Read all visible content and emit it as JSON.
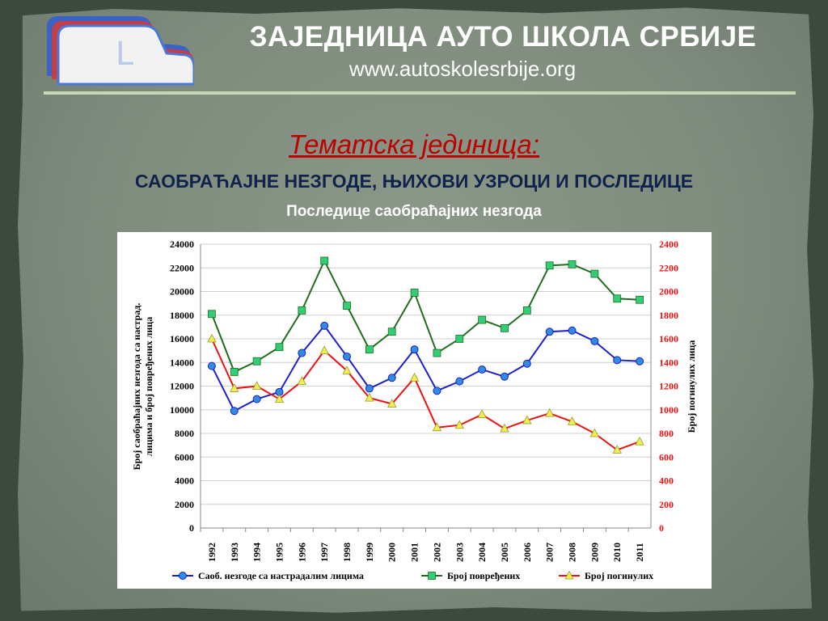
{
  "header": {
    "title": "ЗАЈЕДНИЦА АУТО ШКОЛА СРБИЈЕ",
    "url": "www.autoskolesrbije.org",
    "logo_icon": "car-l-logo-icon"
  },
  "slide": {
    "unit_label": "Тематска јединица:",
    "unit_title": "САОБРАЋАЈНЕ НЕЗГОДЕ, ЊИХОВИ УЗРОЦИ И ПОСЛЕДИЦЕ",
    "subtitle": "Последице саобраћајних незгода"
  },
  "colors": {
    "accidents": "#1f1fcc",
    "injured": "#1e6e1e",
    "killed": "#ee1111",
    "accident_marker": "#2f8de0",
    "injured_marker": "#33cc77",
    "killed_marker": "#f0ee55",
    "title_red": "#c00000",
    "title_navy": "#10234a"
  },
  "chart_data": {
    "type": "line",
    "x": [
      "1992",
      "1993",
      "1994",
      "1995",
      "1996",
      "1997",
      "1998",
      "1999",
      "2000",
      "2001",
      "2002",
      "2003",
      "2004",
      "2005",
      "2006",
      "2007",
      "2008",
      "2009",
      "2010",
      "2011"
    ],
    "ylabel": "Број саобраћајних незгода са настрад. лицима и број повређених лица",
    "y2label": "Број погинулих лица",
    "ylim": [
      0,
      24000
    ],
    "y2lim": [
      0,
      2400
    ],
    "yticks": [
      "0",
      "2000",
      "4000",
      "6000",
      "8000",
      "10000",
      "12000",
      "14000",
      "16000",
      "18000",
      "20000",
      "22000",
      "24000"
    ],
    "y2ticks": [
      "0",
      "200",
      "400",
      "600",
      "800",
      "1000",
      "1200",
      "1400",
      "1600",
      "1800",
      "2000",
      "2200",
      "2400"
    ],
    "grid": true,
    "legend_position": "bottom",
    "series": [
      {
        "name": "Саоб. незгоде са настрадалим лицима",
        "axis": "left",
        "values": [
          13700,
          9900,
          10900,
          11500,
          14800,
          17100,
          14500,
          11800,
          12700,
          15100,
          11600,
          12400,
          13400,
          12800,
          13900,
          16600,
          16700,
          15800,
          14200,
          14100
        ]
      },
      {
        "name": "Број повређених",
        "axis": "left",
        "values": [
          18100,
          13200,
          14100,
          15300,
          18400,
          22600,
          18800,
          15100,
          16600,
          19900,
          14800,
          16000,
          17600,
          16900,
          18400,
          22200,
          22300,
          21500,
          19400,
          19300
        ]
      },
      {
        "name": "Број погинулих",
        "axis": "right",
        "values": [
          1600,
          1180,
          1200,
          1090,
          1240,
          1500,
          1330,
          1100,
          1050,
          1270,
          850,
          870,
          960,
          840,
          910,
          970,
          900,
          800,
          660,
          730
        ]
      }
    ]
  }
}
